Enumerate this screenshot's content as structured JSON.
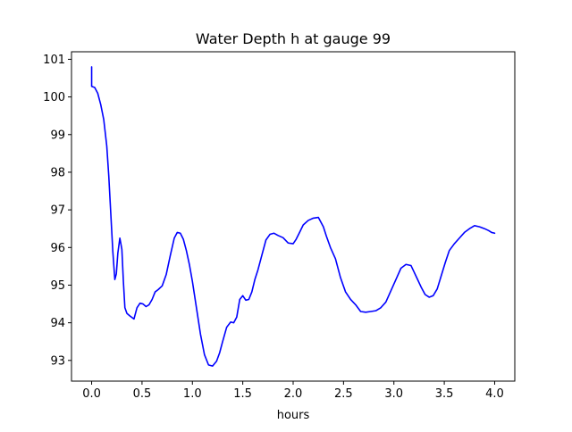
{
  "chart_data": {
    "type": "line",
    "title": "Water Depth h at gauge 99",
    "xlabel": "hours",
    "ylabel": "",
    "xlim": [
      -0.2,
      4.2
    ],
    "ylim": [
      92.45,
      101.2
    ],
    "x_ticks": [
      0.0,
      0.5,
      1.0,
      1.5,
      2.0,
      2.5,
      3.0,
      3.5,
      4.0
    ],
    "x_tick_labels": [
      "0.0",
      "0.5",
      "1.0",
      "1.5",
      "2.0",
      "2.5",
      "3.0",
      "3.5",
      "4.0"
    ],
    "y_ticks": [
      93,
      94,
      95,
      96,
      97,
      98,
      99,
      100,
      101
    ],
    "y_tick_labels": [
      "93",
      "94",
      "95",
      "96",
      "97",
      "98",
      "99",
      "100",
      "101"
    ],
    "grid": false,
    "legend": "none",
    "series": [
      {
        "color": "#0000ff",
        "x": [
          0.0,
          0.0,
          0.0,
          0.03,
          0.06,
          0.09,
          0.12,
          0.15,
          0.17,
          0.19,
          0.21,
          0.23,
          0.245,
          0.26,
          0.28,
          0.3,
          0.315,
          0.33,
          0.35,
          0.38,
          0.42,
          0.45,
          0.48,
          0.51,
          0.54,
          0.57,
          0.6,
          0.63,
          0.66,
          0.7,
          0.74,
          0.78,
          0.82,
          0.85,
          0.88,
          0.91,
          0.94,
          0.97,
          1.0,
          1.04,
          1.08,
          1.12,
          1.16,
          1.2,
          1.24,
          1.27,
          1.3,
          1.34,
          1.38,
          1.41,
          1.44,
          1.47,
          1.5,
          1.53,
          1.56,
          1.59,
          1.62,
          1.65,
          1.69,
          1.73,
          1.77,
          1.81,
          1.85,
          1.9,
          1.95,
          2.0,
          2.03,
          2.06,
          2.1,
          2.15,
          2.2,
          2.25,
          2.3,
          2.33,
          2.37,
          2.42,
          2.47,
          2.52,
          2.57,
          2.62,
          2.67,
          2.72,
          2.77,
          2.82,
          2.87,
          2.92,
          2.97,
          3.02,
          3.07,
          3.12,
          3.17,
          3.2,
          3.23,
          3.27,
          3.31,
          3.35,
          3.39,
          3.43,
          3.47,
          3.51,
          3.55,
          3.6,
          3.65,
          3.7,
          3.75,
          3.8,
          3.85,
          3.9,
          3.94,
          3.97,
          4.0
        ],
        "y": [
          100.8,
          100.3,
          100.28,
          100.25,
          100.1,
          99.8,
          99.4,
          98.7,
          97.9,
          96.9,
          95.9,
          95.15,
          95.3,
          95.85,
          96.25,
          95.95,
          95.1,
          94.4,
          94.25,
          94.18,
          94.1,
          94.4,
          94.52,
          94.5,
          94.43,
          94.48,
          94.62,
          94.82,
          94.88,
          94.98,
          95.28,
          95.78,
          96.25,
          96.4,
          96.38,
          96.22,
          95.92,
          95.55,
          95.1,
          94.4,
          93.7,
          93.15,
          92.88,
          92.85,
          92.98,
          93.2,
          93.5,
          93.88,
          94.02,
          94.0,
          94.15,
          94.62,
          94.72,
          94.6,
          94.62,
          94.82,
          95.15,
          95.4,
          95.8,
          96.2,
          96.35,
          96.38,
          96.32,
          96.26,
          96.12,
          96.1,
          96.22,
          96.38,
          96.6,
          96.72,
          96.78,
          96.8,
          96.55,
          96.3,
          96.0,
          95.7,
          95.2,
          94.82,
          94.62,
          94.48,
          94.3,
          94.28,
          94.3,
          94.32,
          94.4,
          94.55,
          94.85,
          95.15,
          95.45,
          95.55,
          95.52,
          95.35,
          95.18,
          94.95,
          94.75,
          94.68,
          94.72,
          94.9,
          95.25,
          95.6,
          95.92,
          96.1,
          96.25,
          96.4,
          96.5,
          96.58,
          96.55,
          96.5,
          96.45,
          96.4,
          96.38
        ]
      }
    ]
  }
}
